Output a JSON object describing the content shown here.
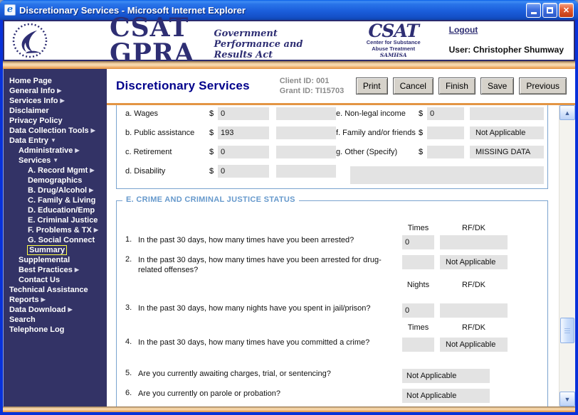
{
  "window": {
    "title": "Discretionary Services - Microsoft Internet Explorer",
    "controls": [
      "minimize",
      "maximize",
      "close"
    ]
  },
  "header": {
    "brand": "CSAT GPRA",
    "brand_subtitle": "Government Performance and Results Act",
    "csat_logo": {
      "big": "CSAT",
      "line1": "Center for Substance",
      "line2": "Abuse Treatment",
      "line3": "SAMHSA"
    },
    "logout": "Logout",
    "user": "User: Christopher Shumway"
  },
  "sidebar": {
    "items": [
      {
        "label": "Home Page",
        "indent": 0,
        "arrow": null,
        "selected": false
      },
      {
        "label": "General Info",
        "indent": 0,
        "arrow": "right",
        "selected": false
      },
      {
        "label": "Services Info",
        "indent": 0,
        "arrow": "right",
        "selected": false
      },
      {
        "label": "Disclaimer",
        "indent": 0,
        "arrow": null,
        "selected": false
      },
      {
        "label": "Privacy Policy",
        "indent": 0,
        "arrow": null,
        "selected": false
      },
      {
        "label": "Data Collection Tools",
        "indent": 0,
        "arrow": "right",
        "selected": false
      },
      {
        "label": "Data Entry",
        "indent": 0,
        "arrow": "down",
        "selected": false
      },
      {
        "label": "Administrative",
        "indent": 1,
        "arrow": "right",
        "selected": false
      },
      {
        "label": "Services",
        "indent": 1,
        "arrow": "down",
        "selected": false
      },
      {
        "label": "A. Record Mgmt",
        "indent": 2,
        "arrow": "right",
        "selected": false
      },
      {
        "label": "Demographics",
        "indent": 2,
        "arrow": null,
        "selected": false
      },
      {
        "label": "B. Drug/Alcohol",
        "indent": 2,
        "arrow": "right",
        "selected": false
      },
      {
        "label": "C. Family & Living",
        "indent": 2,
        "arrow": null,
        "selected": false
      },
      {
        "label": "D. Education/Emp",
        "indent": 2,
        "arrow": null,
        "selected": false
      },
      {
        "label": "E. Criminal Justice",
        "indent": 2,
        "arrow": null,
        "selected": false
      },
      {
        "label": "F. Problems & TX",
        "indent": 2,
        "arrow": "right",
        "selected": false
      },
      {
        "label": "G. Social Connect",
        "indent": 2,
        "arrow": null,
        "selected": false
      },
      {
        "label": "Summary",
        "indent": 2,
        "arrow": null,
        "selected": true
      },
      {
        "label": "Supplemental",
        "indent": 1,
        "arrow": null,
        "selected": false
      },
      {
        "label": "Best Practices",
        "indent": 1,
        "arrow": "right",
        "selected": false
      },
      {
        "label": "Contact Us",
        "indent": 1,
        "arrow": null,
        "selected": false
      },
      {
        "label": "Technical Assistance",
        "indent": 0,
        "arrow": null,
        "selected": false
      },
      {
        "label": "Reports",
        "indent": 0,
        "arrow": "right",
        "selected": false
      },
      {
        "label": "Data Download",
        "indent": 0,
        "arrow": "right",
        "selected": false
      },
      {
        "label": "Search",
        "indent": 0,
        "arrow": null,
        "selected": false
      },
      {
        "label": "Telephone Log",
        "indent": 0,
        "arrow": null,
        "selected": false
      }
    ]
  },
  "toolbar": {
    "page_title": "Discretionary Services",
    "client_id": "Client ID: 001",
    "grant_id": "Grant ID: TI15703",
    "buttons": [
      "Print",
      "Cancel",
      "Finish",
      "Save",
      "Previous"
    ]
  },
  "income_section": {
    "left_rows": [
      {
        "label": "a. Wages",
        "currency": "$",
        "value": "0",
        "extra": ""
      },
      {
        "label": "b. Public assistance",
        "currency": "$",
        "value": "193",
        "extra": ""
      },
      {
        "label": "c. Retirement",
        "currency": "$",
        "value": "0",
        "extra": ""
      },
      {
        "label": "d. Disability",
        "currency": "$",
        "value": "0",
        "extra": ""
      }
    ],
    "right_rows": [
      {
        "label": "e. Non-legal income",
        "currency": "$",
        "value": "0",
        "extra": ""
      },
      {
        "label": "f. Family and/or friends",
        "currency": "$",
        "value": "",
        "extra": "Not Applicable"
      },
      {
        "label": "g. Other (Specify)",
        "currency": "$",
        "value": "",
        "extra": "MISSING DATA"
      }
    ],
    "specify_value": ""
  },
  "crime_section": {
    "legend": "E. CRIME AND CRIMINAL JUSTICE STATUS",
    "questions": [
      {
        "num": "1.",
        "text": "In the past 30 days, how many times have you been arrested?",
        "headers": [
          "Times",
          "RF/DK"
        ],
        "value": "0",
        "rfdk": "",
        "layout": "double"
      },
      {
        "num": "2.",
        "text": "In the past 30 days, how many times have you been arrested for drug-related offenses?",
        "headers": null,
        "value": "",
        "rfdk": "Not Applicable",
        "layout": "double"
      },
      {
        "num": "3.",
        "text": "In the past 30 days, how many nights have you spent in jail/prison?",
        "headers": [
          "Nights",
          "RF/DK"
        ],
        "value": "0",
        "rfdk": "",
        "layout": "double"
      },
      {
        "num": "4.",
        "text": "In the past 30 days, how many times have you committed a crime?",
        "headers": [
          "Times",
          "RF/DK"
        ],
        "value": "",
        "rfdk": "Not Applicable",
        "layout": "double"
      },
      {
        "num": "5.",
        "text": "Are you currently awaiting charges, trial, or sentencing?",
        "headers": null,
        "value": "Not Applicable",
        "rfdk": null,
        "layout": "single"
      },
      {
        "num": "6.",
        "text": "Are you currently on parole or probation?",
        "headers": null,
        "value": "Not Applicable",
        "rfdk": null,
        "layout": "single"
      }
    ]
  },
  "colors": {
    "titlebar_blue": "#1b5edb",
    "window_border": "#0831d9",
    "sidebar_bg": "#333366",
    "brand_navy": "#2e2e73",
    "accent_orange": "#e39544",
    "fieldset_border": "#7aa3cf",
    "legend_blue": "#6699cc",
    "field_gray": "#e3e3e3",
    "selected_outline": "#ffff44",
    "title_navy": "#00008b",
    "id_gray": "#8c8c8c"
  }
}
